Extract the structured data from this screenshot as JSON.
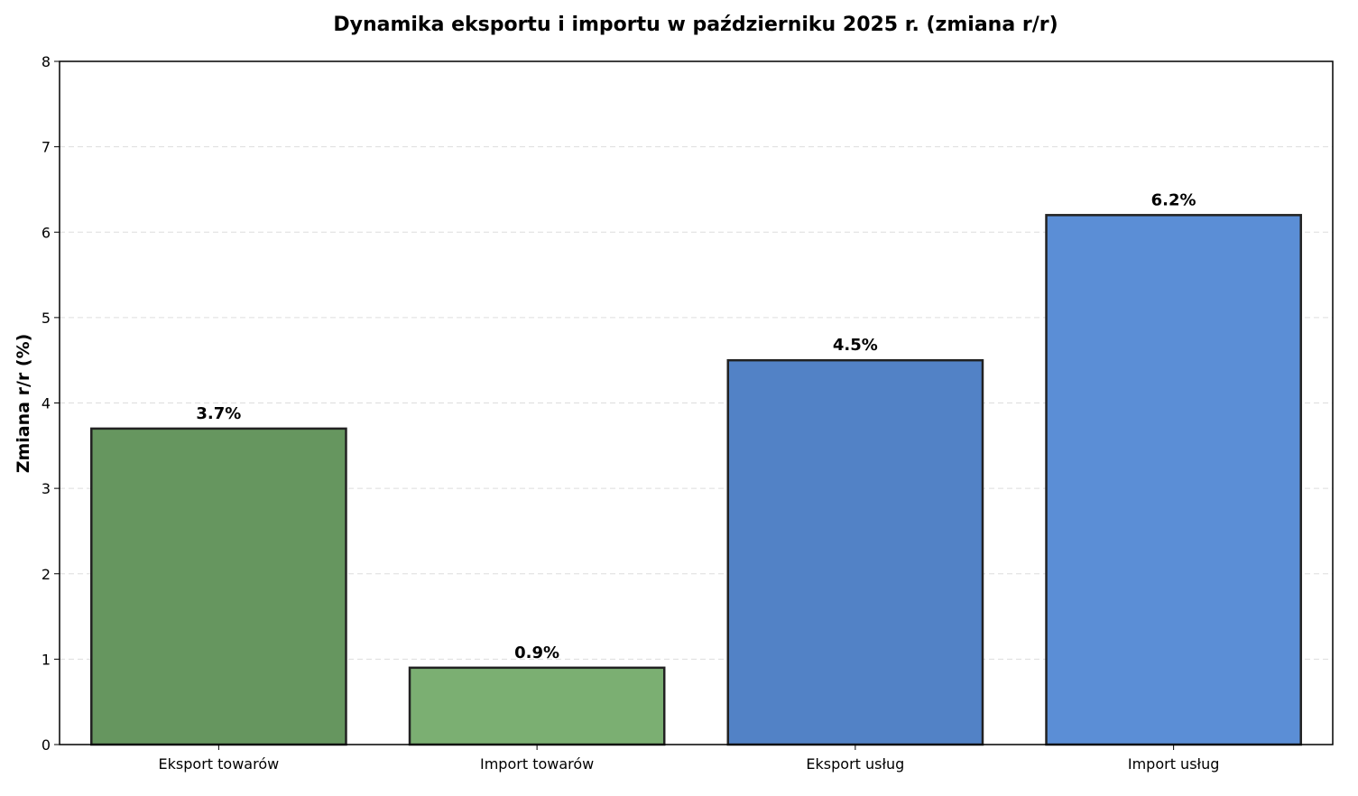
{
  "chart_data": {
    "type": "bar",
    "title": "Dynamika eksportu i importu w październiku 2025 r. (zmiana r/r)",
    "xlabel": "",
    "ylabel": "Zmiana r/r (%)",
    "ylim": [
      0,
      8
    ],
    "yticks": [
      "0",
      "1",
      "2",
      "3",
      "4",
      "5",
      "6",
      "7",
      "8"
    ],
    "grid": "horizontal dashed",
    "categories": [
      "Eksport towarów",
      "Import towarów",
      "Eksport usług",
      "Import usług"
    ],
    "values": [
      3.7,
      0.9,
      4.5,
      6.2
    ],
    "data_labels": [
      "3.7%",
      "0.9%",
      "4.5%",
      "6.2%"
    ],
    "colors": [
      "#66965f",
      "#7baf72",
      "#5282c6",
      "#5b8ed6"
    ]
  }
}
